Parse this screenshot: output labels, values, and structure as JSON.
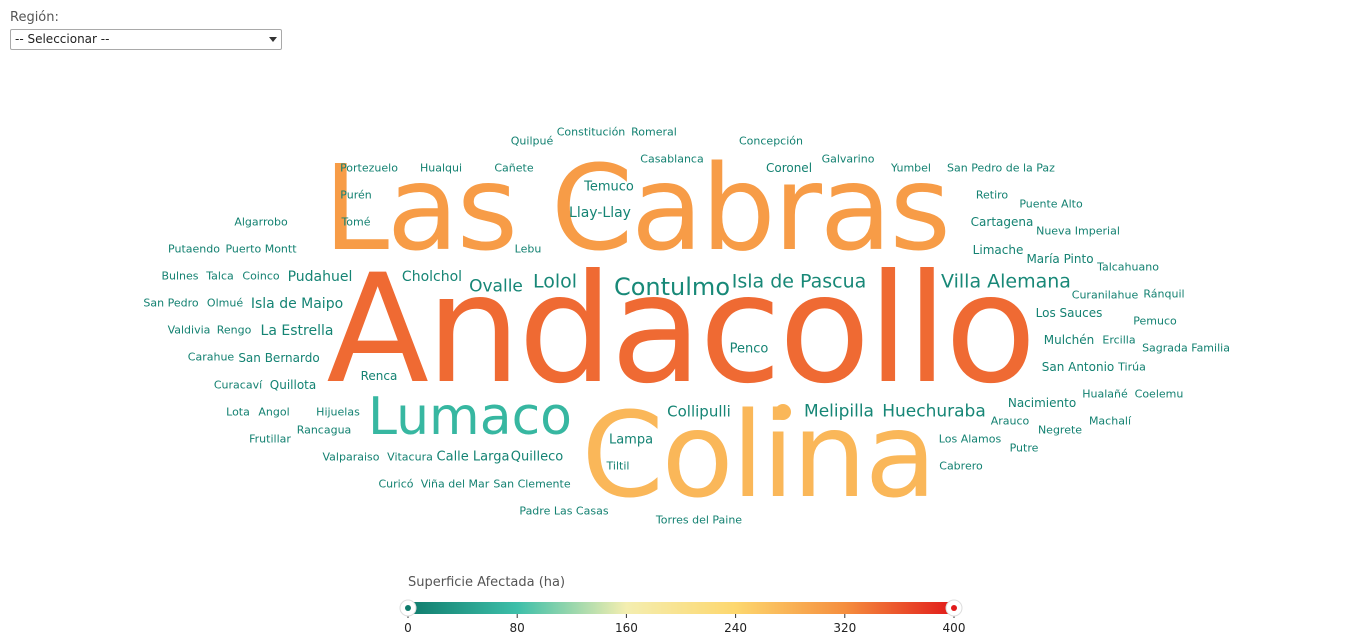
{
  "filter": {
    "label": "Región:",
    "selected": "-- Seleccionar --"
  },
  "chart_data": {
    "type": "wordcloud",
    "value_label": "Superficie Afectada (ha)",
    "scale": {
      "min": 0,
      "max": 400,
      "ticks": [
        0,
        80,
        160,
        240,
        320,
        400
      ],
      "colors": [
        "#0f7b6c",
        "#3dbfa9",
        "#f4eeb0",
        "#fdd76e",
        "#f58e3e",
        "#e11a1a"
      ]
    },
    "words": [
      {
        "text": "Andacollo",
        "value": 345
      },
      {
        "text": "Las Cabras",
        "value": 305
      },
      {
        "text": "Colina",
        "value": 275
      },
      {
        "text": "Lumaco",
        "value": 70
      },
      {
        "text": "Contulmo",
        "value": 16
      },
      {
        "text": "Villa Alemana",
        "value": 15
      },
      {
        "text": "Isla de Pascua",
        "value": 15
      },
      {
        "text": "Lolol",
        "value": 14
      },
      {
        "text": "Ovalle",
        "value": 13
      },
      {
        "text": "Huechuraba",
        "value": 13
      },
      {
        "text": "Melipilla",
        "value": 13
      },
      {
        "text": "Llay-Llay",
        "value": 11
      },
      {
        "text": "Collipulli",
        "value": 12
      },
      {
        "text": "Isla de Maipo",
        "value": 11
      },
      {
        "text": "La Estrella",
        "value": 11
      },
      {
        "text": "Pudahuel",
        "value": 11
      },
      {
        "text": "Cholchol",
        "value": 10
      },
      {
        "text": "Temuco",
        "value": 9
      },
      {
        "text": "Penco",
        "value": 9
      },
      {
        "text": "Quilleco",
        "value": 9
      },
      {
        "text": "Calle Larga",
        "value": 9
      },
      {
        "text": "Lampa",
        "value": 9
      },
      {
        "text": "San Bernardo",
        "value": 9
      },
      {
        "text": "Quillota",
        "value": 9
      },
      {
        "text": "Renca",
        "value": 8
      },
      {
        "text": "Coronel",
        "value": 8
      },
      {
        "text": "Cartagena",
        "value": 8
      },
      {
        "text": "Limache",
        "value": 8
      },
      {
        "text": "María Pinto",
        "value": 8
      },
      {
        "text": "Los Sauces",
        "value": 8
      },
      {
        "text": "Mulchén",
        "value": 8
      },
      {
        "text": "San Antonio",
        "value": 8
      },
      {
        "text": "Nacimiento",
        "value": 8
      },
      {
        "text": "Los Alamos",
        "value": 8
      },
      {
        "text": "Hijuelas",
        "value": 8
      },
      {
        "text": "Casablanca",
        "value": 8
      },
      {
        "text": "Tiltil",
        "value": 7
      },
      {
        "text": "Galvarino",
        "value": 7
      },
      {
        "text": "Yumbel",
        "value": 7
      },
      {
        "text": "Hualqui",
        "value": 7
      },
      {
        "text": "Portezuelo",
        "value": 7
      },
      {
        "text": "Cañete",
        "value": 7
      },
      {
        "text": "Lebu",
        "value": 7
      },
      {
        "text": "Tomé",
        "value": 7
      },
      {
        "text": "Purén",
        "value": 7
      },
      {
        "text": "Algarrobo",
        "value": 7
      },
      {
        "text": "Puerto Montt",
        "value": 7
      },
      {
        "text": "Putaendo",
        "value": 7
      },
      {
        "text": "Coinco",
        "value": 7
      },
      {
        "text": "Talca",
        "value": 7
      },
      {
        "text": "Bulnes",
        "value": 7
      },
      {
        "text": "Olmué",
        "value": 7
      },
      {
        "text": "San Pedro",
        "value": 7
      },
      {
        "text": "Rengo",
        "value": 7
      },
      {
        "text": "Valdivia",
        "value": 7
      },
      {
        "text": "Carahue",
        "value": 7
      },
      {
        "text": "Curacaví",
        "value": 7
      },
      {
        "text": "Angol",
        "value": 7
      },
      {
        "text": "Lota",
        "value": 7
      },
      {
        "text": "Frutillar",
        "value": 7
      },
      {
        "text": "Rancagua",
        "value": 7
      },
      {
        "text": "Valparaiso",
        "value": 7
      },
      {
        "text": "Vitacura",
        "value": 7
      },
      {
        "text": "Curicó",
        "value": 7
      },
      {
        "text": "Viña del Mar",
        "value": 7
      },
      {
        "text": "San Clemente",
        "value": 7
      },
      {
        "text": "Padre Las Casas",
        "value": 7
      },
      {
        "text": "Torres del Paine",
        "value": 7
      },
      {
        "text": "Arauco",
        "value": 7
      },
      {
        "text": "Negrete",
        "value": 7
      },
      {
        "text": "Putre",
        "value": 7
      },
      {
        "text": "Cabrero",
        "value": 7
      },
      {
        "text": "Hualañé",
        "value": 7
      },
      {
        "text": "Coelemu",
        "value": 7
      },
      {
        "text": "Machalí",
        "value": 7
      },
      {
        "text": "Tirúa",
        "value": 7
      },
      {
        "text": "Sagrada Familia",
        "value": 7
      },
      {
        "text": "Pemuco",
        "value": 7
      },
      {
        "text": "Ercilla",
        "value": 7
      },
      {
        "text": "Ránquil",
        "value": 7
      },
      {
        "text": "Curanilahue",
        "value": 7
      },
      {
        "text": "Talcahuano",
        "value": 7
      },
      {
        "text": "Nueva Imperial",
        "value": 7
      },
      {
        "text": "Puente Alto",
        "value": 7
      },
      {
        "text": "Retiro",
        "value": 7
      },
      {
        "text": "San Pedro de la Paz",
        "value": 7
      },
      {
        "text": "Concepción",
        "value": 7
      },
      {
        "text": "Quilpué",
        "value": 7
      },
      {
        "text": "Constitución",
        "value": 7
      },
      {
        "text": "Romeral",
        "value": 7
      },
      {
        "text": "",
        "value": 275
      }
    ]
  }
}
